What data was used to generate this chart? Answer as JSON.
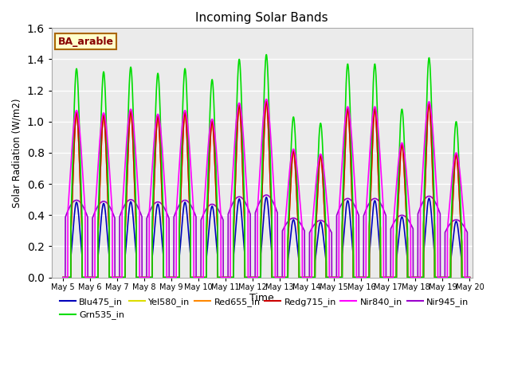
{
  "title": "Incoming Solar Bands",
  "xlabel": "Time",
  "ylabel": "Solar Radiation (W/m2)",
  "annotation_text": "BA_arable",
  "ylim": [
    0,
    1.6
  ],
  "xlim_days": [
    4.58,
    20.1
  ],
  "x_tick_labels": [
    "May 5",
    "May 6",
    "May 7",
    "May 8",
    "May 9",
    "May 10",
    "May 11",
    "May 12",
    "May 13",
    "May 14",
    "May 15",
    "May 16",
    "May 17",
    "May 18",
    "May 19",
    "May 20"
  ],
  "x_tick_positions": [
    5,
    6,
    7,
    8,
    9,
    10,
    11,
    12,
    13,
    14,
    15,
    16,
    17,
    18,
    19,
    20
  ],
  "series": [
    {
      "name": "Blu475_in",
      "color": "#0000bb",
      "lw": 1.2,
      "zorder": 3
    },
    {
      "name": "Grn535_in",
      "color": "#00dd00",
      "lw": 1.2,
      "zorder": 7
    },
    {
      "name": "Yel580_in",
      "color": "#dddd00",
      "lw": 1.2,
      "zorder": 4
    },
    {
      "name": "Red655_in",
      "color": "#ff8800",
      "lw": 1.2,
      "zorder": 5
    },
    {
      "name": "Redg715_in",
      "color": "#cc0000",
      "lw": 1.2,
      "zorder": 6
    },
    {
      "name": "Nir840_in",
      "color": "#ff00ff",
      "lw": 1.2,
      "zorder": 8
    },
    {
      "name": "Nir945_in",
      "color": "#9900cc",
      "lw": 1.2,
      "zorder": 2
    }
  ],
  "background_color": "#ebebeb",
  "grid_color": "#ffffff",
  "annotation_facecolor": "#ffffcc",
  "annotation_edgecolor": "#aa6600",
  "annotation_textcolor": "#880000",
  "green_peaks": [
    1.34,
    1.32,
    1.35,
    1.31,
    1.34,
    1.27,
    1.4,
    1.43,
    1.03,
    0.99,
    1.37,
    1.37,
    1.08,
    1.41,
    1.0
  ],
  "scale_blu": 0.36,
  "scale_yel": 0.79,
  "scale_red": 0.79,
  "scale_redg": 0.79,
  "scale_nir840_wide": 0.8,
  "scale_nir945": 0.37,
  "dawn_offsets": [
    0.295,
    0.295,
    0.295,
    0.295,
    0.295,
    0.295,
    0.295,
    0.295,
    0.295,
    0.295,
    0.295,
    0.295,
    0.295,
    0.295,
    0.295
  ],
  "sigma_factor": 0.13
}
